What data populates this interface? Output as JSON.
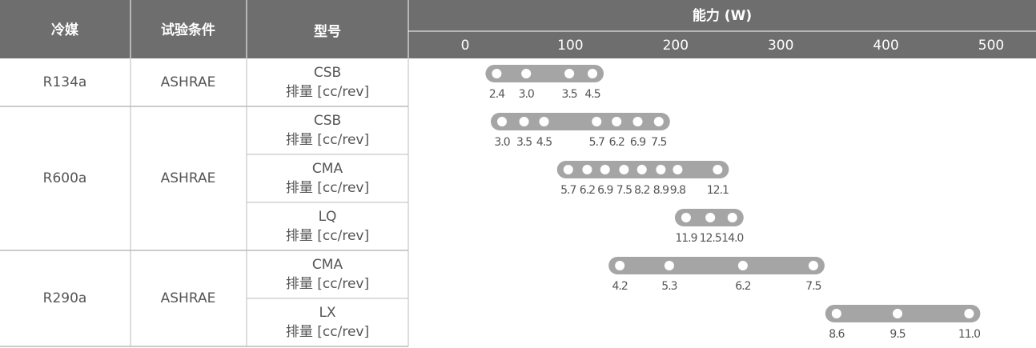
{
  "table": {
    "headers": [
      "冷媒",
      "试验条件",
      "型号",
      "能力 (W)"
    ],
    "axis": {
      "xlim": [
        0,
        500
      ],
      "xticks": [
        0,
        100,
        200,
        300,
        400,
        500
      ]
    },
    "groups": [
      {
        "refrigerant": "R134a",
        "condition": "ASHRAE",
        "models": [
          {
            "name": "CSB",
            "unit": "排量 [cc/rev]",
            "dots": [
              {
                "label": "2.4",
                "capacity": 30
              },
              {
                "label": "3.0",
                "capacity": 58
              },
              {
                "label": "3.5",
                "capacity": 99
              },
              {
                "label": "4.5",
                "capacity": 121
              }
            ]
          }
        ]
      },
      {
        "refrigerant": "R600a",
        "condition": "ASHRAE",
        "models": [
          {
            "name": "CSB",
            "unit": "排量 [cc/rev]",
            "dots": [
              {
                "label": "3.0",
                "capacity": 35
              },
              {
                "label": "3.5",
                "capacity": 56
              },
              {
                "label": "4.5",
                "capacity": 75
              },
              {
                "label": "5.7",
                "capacity": 125
              },
              {
                "label": "6.2",
                "capacity": 144
              },
              {
                "label": "6.9",
                "capacity": 164
              },
              {
                "label": "7.5",
                "capacity": 184
              }
            ]
          },
          {
            "name": "CMA",
            "unit": "排量 [cc/rev]",
            "dots": [
              {
                "label": "5.7",
                "capacity": 98
              },
              {
                "label": "6.2",
                "capacity": 116
              },
              {
                "label": "6.9",
                "capacity": 133
              },
              {
                "label": "7.5",
                "capacity": 151
              },
              {
                "label": "8.2",
                "capacity": 168
              },
              {
                "label": "8.9",
                "capacity": 186
              },
              {
                "label": "9.8",
                "capacity": 202
              },
              {
                "label": "12.1",
                "capacity": 240
              }
            ]
          },
          {
            "name": "LQ",
            "unit": "排量 [cc/rev]",
            "dots": [
              {
                "label": "11.9",
                "capacity": 210
              },
              {
                "label": "12.5",
                "capacity": 233
              },
              {
                "label": "14.0",
                "capacity": 254
              }
            ]
          }
        ]
      },
      {
        "refrigerant": "R290a",
        "condition": "ASHRAE",
        "models": [
          {
            "name": "CMA",
            "unit": "排量 [cc/rev]",
            "dots": [
              {
                "label": "4.2",
                "capacity": 147
              },
              {
                "label": "5.3",
                "capacity": 194
              },
              {
                "label": "6.2",
                "capacity": 264
              },
              {
                "label": "7.5",
                "capacity": 331
              }
            ]
          },
          {
            "name": "LX",
            "unit": "排量 [cc/rev]",
            "dots": [
              {
                "label": "8.6",
                "capacity": 353
              },
              {
                "label": "9.5",
                "capacity": 411
              },
              {
                "label": "11.0",
                "capacity": 479
              }
            ]
          }
        ]
      }
    ]
  }
}
